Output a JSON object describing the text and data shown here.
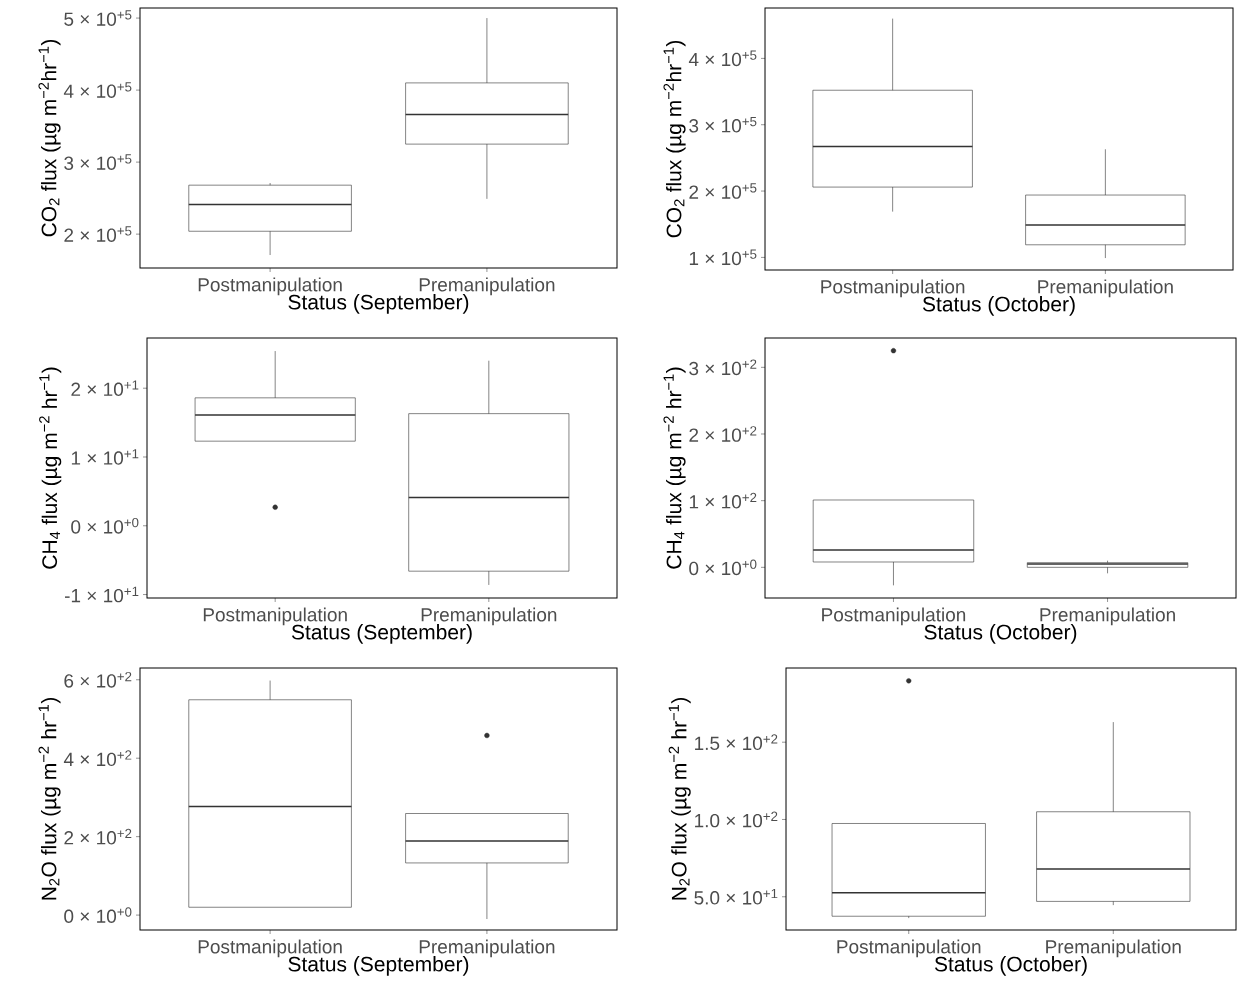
{
  "chart_data": [
    {
      "type": "box",
      "categories": [
        "Postmanipulation",
        "Premanipulation"
      ],
      "xlabel": "Status (September)",
      "ylabel": "CO$_{2}$ flux (µg m$^{−2}$hr$^{−1}$)",
      "ylim": [
        153000,
        514000
      ],
      "yticks": [
        {
          "value": 200000,
          "label": "2 × 10$^{+5}$"
        },
        {
          "value": 300000,
          "label": "3 × 10$^{+5}$"
        },
        {
          "value": 400000,
          "label": "4 × 10$^{+5}$"
        },
        {
          "value": 500000,
          "label": "5 × 10$^{+5}$"
        }
      ],
      "boxes": [
        {
          "low": 171000,
          "q1": 204000,
          "median": 241000,
          "q3": 268000,
          "high": 271000
        },
        {
          "low": 249000,
          "q1": 325000,
          "median": 366000,
          "q3": 410000,
          "high": 500000
        }
      ]
    },
    {
      "type": "box",
      "categories": [
        "Postmanipulation",
        "Premanipulation"
      ],
      "xlabel": "Status (October)",
      "ylabel": "CO$_{2}$ flux (µg m$^{−2}$hr$^{−1}$)",
      "ylim": [
        81000,
        476000
      ],
      "yticks": [
        {
          "value": 100000,
          "label": "1 × 10$^{+5}$"
        },
        {
          "value": 200000,
          "label": "2 × 10$^{+5}$"
        },
        {
          "value": 300000,
          "label": "3 × 10$^{+5}$"
        },
        {
          "value": 400000,
          "label": "4 × 10$^{+5}$"
        }
      ],
      "boxes": [
        {
          "low": 169000,
          "q1": 206000,
          "median": 267000,
          "q3": 352000,
          "high": 460000
        },
        {
          "low": 99000,
          "q1": 119000,
          "median": 149000,
          "q3": 194000,
          "high": 263000
        }
      ]
    },
    {
      "type": "box",
      "categories": [
        "Postmanipulation",
        "Premanipulation"
      ],
      "xlabel": "Status (September)",
      "ylabel": "CH$_{4}$ flux (µg m$^{−2}$ hr$^{−1}$)",
      "ylim": [
        -10.5,
        27.3
      ],
      "yticks": [
        {
          "value": -10,
          "label": "-1 × 10$^{+1}$"
        },
        {
          "value": 0,
          "label": "0 × 10$^{+0}$"
        },
        {
          "value": 10,
          "label": "1 × 10$^{+1}$"
        },
        {
          "value": 20,
          "label": "2 × 10$^{+1}$"
        }
      ],
      "boxes": [
        {
          "low": 12.3,
          "q1": 12.3,
          "median": 16.1,
          "q3": 18.6,
          "high": 25.4,
          "outliers": [
            2.7
          ]
        },
        {
          "low": -8.6,
          "q1": -6.6,
          "median": 4.1,
          "q3": 16.3,
          "high": 24.0
        }
      ]
    },
    {
      "type": "box",
      "categories": [
        "Postmanipulation",
        "Premanipulation"
      ],
      "xlabel": "Status (October)",
      "ylabel": "CH$_{4}$ flux (µg m$^{−2}$ hr$^{−1}$)",
      "ylim": [
        -46,
        344
      ],
      "yticks": [
        {
          "value": 0,
          "label": "0 × 10$^{+0}$"
        },
        {
          "value": 100,
          "label": "1 × 10$^{+2}$"
        },
        {
          "value": 200,
          "label": "2 × 10$^{+2}$"
        },
        {
          "value": 300,
          "label": "3 × 10$^{+2}$"
        }
      ],
      "boxes": [
        {
          "low": -27,
          "q1": 8,
          "median": 26,
          "q3": 101,
          "high": 101,
          "outliers": [
            325
          ]
        },
        {
          "low": -9,
          "q1": 0,
          "median": 5,
          "q3": 7,
          "high": 10
        }
      ]
    },
    {
      "type": "box",
      "categories": [
        "Postmanipulation",
        "Premanipulation"
      ],
      "xlabel": "Status (September)",
      "ylabel": "N$_{2}$O flux (µg m$^{−2}$ hr$^{−1}$)",
      "ylim": [
        -38,
        630
      ],
      "yticks": [
        {
          "value": 0,
          "label": "0 × 10$^{+0}$"
        },
        {
          "value": 200,
          "label": "2 × 10$^{+2}$"
        },
        {
          "value": 400,
          "label": "4 × 10$^{+2}$"
        },
        {
          "value": 600,
          "label": "6 × 10$^{+2}$"
        }
      ],
      "boxes": [
        {
          "low": 20,
          "q1": 20,
          "median": 277,
          "q3": 549,
          "high": 598
        },
        {
          "low": -10,
          "q1": 133,
          "median": 189,
          "q3": 259,
          "high": 259,
          "outliers": [
            458
          ]
        }
      ]
    },
    {
      "type": "box",
      "categories": [
        "Postmanipulation",
        "Premanipulation"
      ],
      "xlabel": "Status (October)",
      "ylabel": "N$_{2}$O flux (µg m$^{−2}$ hr$^{−1}$)",
      "ylim": [
        28.5,
        198
      ],
      "yticks": [
        {
          "value": 50,
          "label": "5.0 × 10$^{+1}$"
        },
        {
          "value": 100,
          "label": "1.0 × 10$^{+2}$"
        },
        {
          "value": 150,
          "label": "1.5 × 10$^{+2}$"
        }
      ],
      "boxes": [
        {
          "low": 36.2,
          "q1": 37.4,
          "median": 52.6,
          "q3": 97.4,
          "high": 97.4,
          "outliers": [
            189.7
          ]
        },
        {
          "low": 44.6,
          "q1": 47,
          "median": 68,
          "q3": 105,
          "high": 163
        }
      ]
    }
  ]
}
